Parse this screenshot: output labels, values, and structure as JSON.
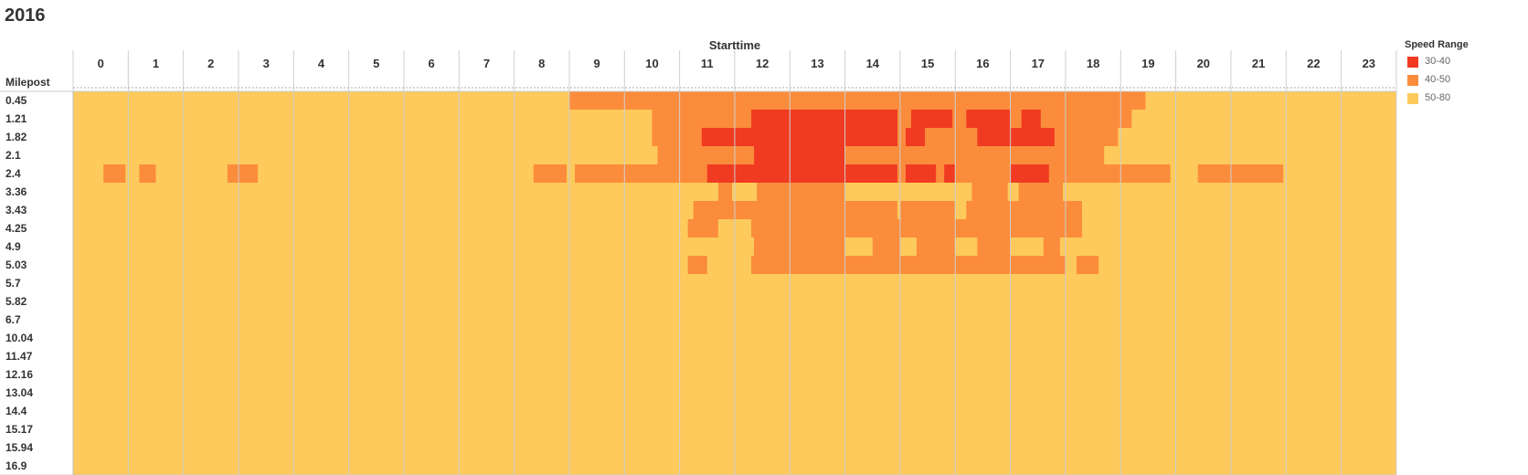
{
  "title": "2016",
  "legend": {
    "title": "Speed Range",
    "items": [
      {
        "label": "30-40",
        "color": "#f03b22"
      },
      {
        "label": "40-50",
        "color": "#fb8c3c"
      },
      {
        "label": "50-80",
        "color": "#fdca5b"
      }
    ]
  },
  "chart_data": {
    "type": "heatmap",
    "title": "2016",
    "xlabel": "Starttime",
    "ylabel": "Milepost",
    "x": [
      0,
      1,
      2,
      3,
      4,
      5,
      6,
      7,
      8,
      9,
      10,
      11,
      12,
      13,
      14,
      15,
      16,
      17,
      18,
      19,
      20,
      21,
      22,
      23
    ],
    "x_tick_labels": [
      "0",
      "1",
      "2",
      "3",
      "4",
      "5",
      "6",
      "7",
      "8",
      "9",
      "10",
      "11",
      "12",
      "13",
      "14",
      "15",
      "16",
      "17",
      "18",
      "19",
      "20",
      "21",
      "22",
      "23"
    ],
    "y": [
      "0.45",
      "1.21",
      "1.82",
      "2.1",
      "2.4",
      "3.36",
      "3.43",
      "4.25",
      "4.9",
      "5.03",
      "5.7",
      "5.82",
      "6.7",
      "10.04",
      "11.47",
      "12.16",
      "13.04",
      "14.4",
      "15.17",
      "15.94",
      "16.9"
    ],
    "legend_title": "Speed Range",
    "categories": [
      "30-40",
      "40-50",
      "50-80"
    ],
    "default_category": "50-80",
    "grid": "vertical",
    "legend_position": "right",
    "segments": [
      {
        "milepost": "0.45",
        "range": "40-50",
        "start": 9.0,
        "end": 19.45
      },
      {
        "milepost": "1.21",
        "range": "40-50",
        "start": 10.5,
        "end": 19.2
      },
      {
        "milepost": "1.21",
        "range": "30-40",
        "start": 12.3,
        "end": 14.95
      },
      {
        "milepost": "1.21",
        "range": "30-40",
        "start": 15.2,
        "end": 15.95
      },
      {
        "milepost": "1.21",
        "range": "30-40",
        "start": 16.2,
        "end": 17.0
      },
      {
        "milepost": "1.21",
        "range": "30-40",
        "start": 17.2,
        "end": 17.55
      },
      {
        "milepost": "1.82",
        "range": "40-50",
        "start": 10.5,
        "end": 18.95
      },
      {
        "milepost": "1.82",
        "range": "30-40",
        "start": 11.4,
        "end": 14.95
      },
      {
        "milepost": "1.82",
        "range": "30-40",
        "start": 15.1,
        "end": 15.45
      },
      {
        "milepost": "1.82",
        "range": "30-40",
        "start": 16.4,
        "end": 17.8
      },
      {
        "milepost": "2.1",
        "range": "40-50",
        "start": 10.6,
        "end": 18.7
      },
      {
        "milepost": "2.1",
        "range": "30-40",
        "start": 12.35,
        "end": 14.0
      },
      {
        "milepost": "2.4",
        "range": "40-50",
        "start": 0.55,
        "end": 0.95
      },
      {
        "milepost": "2.4",
        "range": "40-50",
        "start": 1.2,
        "end": 1.5
      },
      {
        "milepost": "2.4",
        "range": "40-50",
        "start": 2.8,
        "end": 3.35
      },
      {
        "milepost": "2.4",
        "range": "40-50",
        "start": 8.35,
        "end": 8.95
      },
      {
        "milepost": "2.4",
        "range": "40-50",
        "start": 9.1,
        "end": 19.9
      },
      {
        "milepost": "2.4",
        "range": "40-50",
        "start": 20.4,
        "end": 21.95
      },
      {
        "milepost": "2.4",
        "range": "30-40",
        "start": 11.5,
        "end": 14.95
      },
      {
        "milepost": "2.4",
        "range": "30-40",
        "start": 15.1,
        "end": 15.65
      },
      {
        "milepost": "2.4",
        "range": "30-40",
        "start": 15.8,
        "end": 16.0
      },
      {
        "milepost": "2.4",
        "range": "30-40",
        "start": 17.0,
        "end": 17.7
      },
      {
        "milepost": "3.36",
        "range": "40-50",
        "start": 11.7,
        "end": 11.95
      },
      {
        "milepost": "3.36",
        "range": "40-50",
        "start": 12.4,
        "end": 14.0
      },
      {
        "milepost": "3.36",
        "range": "40-50",
        "start": 16.3,
        "end": 16.95
      },
      {
        "milepost": "3.36",
        "range": "40-50",
        "start": 17.15,
        "end": 17.95
      },
      {
        "milepost": "3.43",
        "range": "40-50",
        "start": 11.25,
        "end": 14.95
      },
      {
        "milepost": "3.43",
        "range": "40-50",
        "start": 15.0,
        "end": 16.0
      },
      {
        "milepost": "3.43",
        "range": "40-50",
        "start": 16.2,
        "end": 18.3
      },
      {
        "milepost": "4.25",
        "range": "40-50",
        "start": 11.15,
        "end": 11.7
      },
      {
        "milepost": "4.25",
        "range": "40-50",
        "start": 12.3,
        "end": 18.3
      },
      {
        "milepost": "4.9",
        "range": "40-50",
        "start": 12.35,
        "end": 14.0
      },
      {
        "milepost": "4.9",
        "range": "40-50",
        "start": 14.5,
        "end": 15.0
      },
      {
        "milepost": "4.9",
        "range": "40-50",
        "start": 15.3,
        "end": 16.0
      },
      {
        "milepost": "4.9",
        "range": "40-50",
        "start": 16.4,
        "end": 17.0
      },
      {
        "milepost": "4.9",
        "range": "40-50",
        "start": 17.6,
        "end": 17.9
      },
      {
        "milepost": "5.03",
        "range": "40-50",
        "start": 11.15,
        "end": 11.5
      },
      {
        "milepost": "5.03",
        "range": "40-50",
        "start": 12.3,
        "end": 18.0
      },
      {
        "milepost": "5.03",
        "range": "40-50",
        "start": 18.2,
        "end": 18.6
      }
    ]
  }
}
